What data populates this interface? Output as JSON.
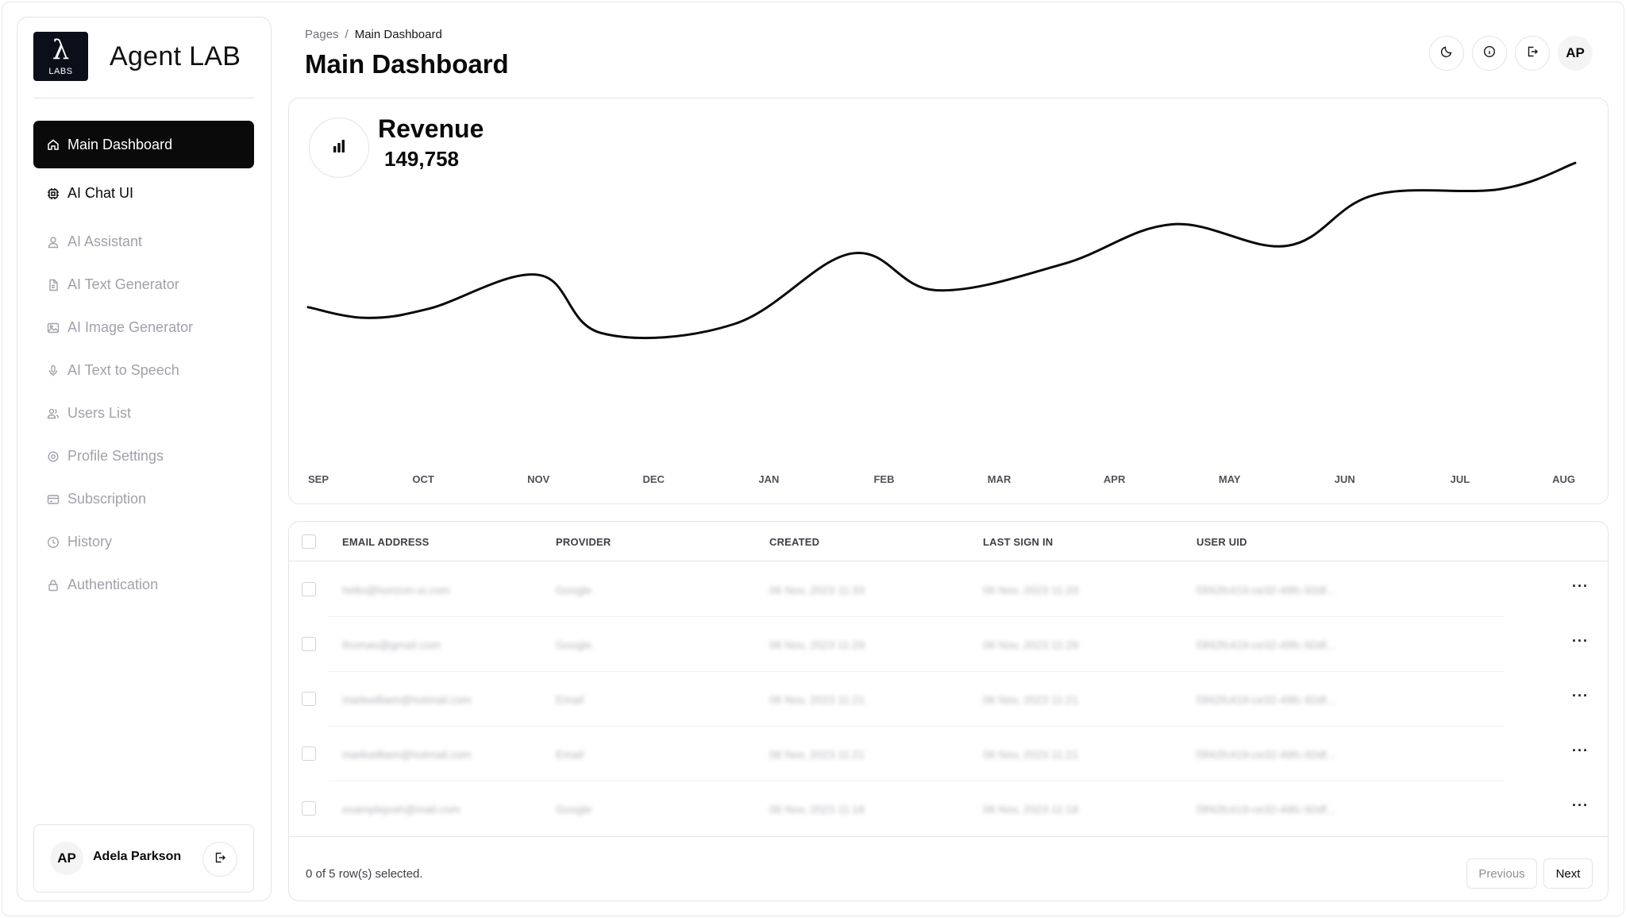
{
  "brand": {
    "logo_symbol": "λ",
    "logo_sub": "LABS",
    "name": "Agent LAB"
  },
  "sidebar": {
    "items": [
      {
        "label": "Main Dashboard",
        "icon": "home-icon"
      },
      {
        "label": "AI Chat UI",
        "icon": "chip-icon"
      },
      {
        "label": "AI Assistant",
        "icon": "user-icon"
      },
      {
        "label": "AI Text Generator",
        "icon": "file-icon"
      },
      {
        "label": "AI Image Generator",
        "icon": "image-icon"
      },
      {
        "label": "AI Text to Speech",
        "icon": "mic-icon"
      },
      {
        "label": "Users List",
        "icon": "users-icon"
      },
      {
        "label": "Profile Settings",
        "icon": "gear-icon"
      },
      {
        "label": "Subscription",
        "icon": "card-icon"
      },
      {
        "label": "History",
        "icon": "clock-icon"
      },
      {
        "label": "Authentication",
        "icon": "lock-icon"
      }
    ],
    "user": {
      "initials": "AP",
      "name": "Adela Parkson"
    }
  },
  "header": {
    "breadcrumb": {
      "root": "Pages",
      "separator": "/",
      "current": "Main Dashboard"
    },
    "title": "Main Dashboard",
    "avatar_initials": "AP"
  },
  "revenue": {
    "title": "Revenue",
    "value": "149,758"
  },
  "chart_data": {
    "type": "line",
    "title": "Revenue",
    "categories": [
      "SEP",
      "OCT",
      "NOV",
      "DEC",
      "JAN",
      "FEB",
      "MAR",
      "APR",
      "MAY",
      "JUN",
      "JUL",
      "AUG"
    ],
    "x": [
      0.0,
      0.5,
      1.05,
      2.0,
      2.55,
      3.7,
      4.72,
      5.45,
      6.55,
      7.5,
      8.5,
      9.25,
      10.35,
      11.0
    ],
    "values": [
      40,
      33,
      39,
      61,
      23,
      29,
      75,
      51,
      68,
      94,
      80,
      113,
      117,
      134
    ],
    "series_name": "Revenue",
    "ylim": [
      0,
      145
    ],
    "grid": false,
    "legend": "none"
  },
  "table": {
    "headers": [
      "EMAIL ADDRESS",
      "PROVIDER",
      "CREATED",
      "LAST SIGN IN",
      "USER UID"
    ],
    "rows": [
      [
        "hello@horizon-ui.com",
        "Google",
        "06 Nov, 2023 11:33",
        "06 Nov, 2023 11:33",
        "f3f42fc419-ce32-49fc-92df..."
      ],
      [
        "thomas@gmail.com",
        "Google",
        "06 Nov, 2023 11:29",
        "06 Nov, 2023 11:29",
        "f3f42fc419-ce32-49fc-92df..."
      ],
      [
        "markwilliam@hotmail.com",
        "Email",
        "06 Nov, 2023 11:21",
        "06 Nov, 2023 11:21",
        "f3f42fc419-ce32-49fc-92df..."
      ],
      [
        "markwilliam@hotmail.com",
        "Email",
        "06 Nov, 2023 11:21",
        "06 Nov, 2023 11:21",
        "f3f42fc419-ce32-49fc-92df..."
      ],
      [
        "examplejosh@mail.com",
        "Google",
        "06 Nov, 2023 11:18",
        "06 Nov, 2023 11:18",
        "f3f42fc419-ce32-49fc-92df..."
      ]
    ],
    "row_menu": "···",
    "selection_text": "0 of 5 row(s) selected.",
    "prev_label": "Previous",
    "next_label": "Next"
  },
  "colors": {
    "active_bg": "#0a0a0a",
    "muted_text": "#a1a1aa",
    "border": "#e4e4e7",
    "line": "#0a0a0a"
  }
}
